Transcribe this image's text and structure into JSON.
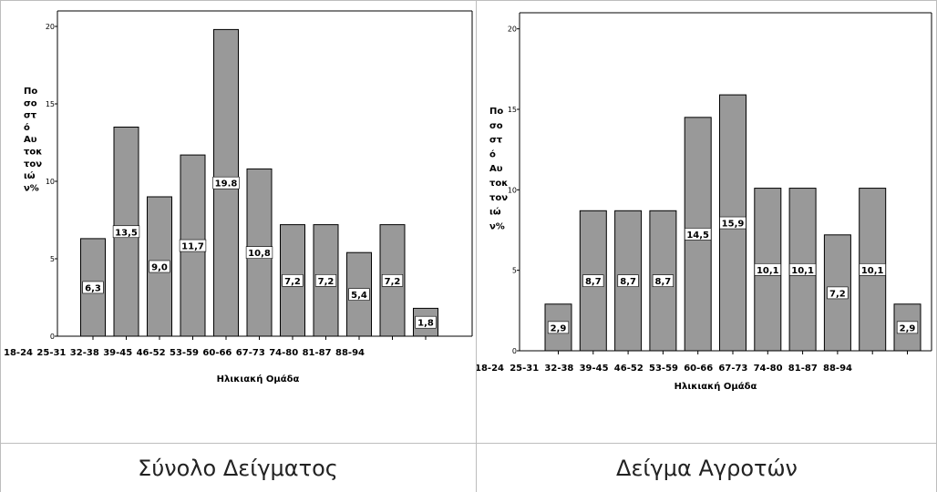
{
  "chart_data": [
    {
      "type": "bar",
      "categories": [
        "18-24",
        "25-31",
        "32-38",
        "39-45",
        "46-52",
        "53-59",
        "60-66",
        "67-73",
        "74-80",
        "81-87",
        "88-94"
      ],
      "values": [
        6.3,
        13.5,
        9.0,
        11.7,
        19.8,
        10.8,
        7.2,
        7.2,
        5.4,
        7.2,
        1.8
      ],
      "value_labels": [
        "6,3",
        "13,5",
        "9,0",
        "11,7",
        "19.8",
        "10,8",
        "7,2",
        "7,2",
        "5,4",
        "7,2",
        "1,8"
      ],
      "xlabel": "Ηλικιακή Ομάδα",
      "ylabel_lines": [
        "Πο",
        "σο",
        "στ",
        "ό",
        "Αυ",
        "τοκ",
        "τον",
        "ιώ",
        "ν%"
      ],
      "yticks": [
        0,
        5,
        10,
        15,
        20
      ],
      "ytick_labels": [
        "0",
        "5",
        "10",
        "15",
        "20"
      ],
      "ylim": [
        0,
        21
      ],
      "bar_color": "#999999",
      "grid": false,
      "caption": "Σύνολο Δείγματος"
    },
    {
      "type": "bar",
      "categories": [
        "18-24",
        "25-31",
        "32-38",
        "39-45",
        "46-52",
        "53-59",
        "60-66",
        "67-73",
        "74-80",
        "81-87",
        "88-94"
      ],
      "values": [
        2.9,
        8.7,
        8.7,
        8.7,
        14.5,
        15.9,
        10.1,
        10.1,
        7.2,
        10.1,
        2.9
      ],
      "value_labels": [
        "2,9",
        "8,7",
        "8,7",
        "8,7",
        "14,5",
        "15,9",
        "10,1",
        "10,1",
        "7,2",
        "10,1",
        "2,9"
      ],
      "xlabel": "Ηλικιακή Ομάδα",
      "ylabel_lines": [
        "Πο",
        "σο",
        "στ",
        "ό",
        "Αυ",
        "τοκ",
        "τον",
        "ιώ",
        "ν%"
      ],
      "yticks": [
        0,
        5,
        10,
        15,
        20
      ],
      "ytick_labels": [
        "0",
        "5",
        "10",
        "15",
        "20"
      ],
      "ylim": [
        0,
        21
      ],
      "bar_color": "#999999",
      "grid": false,
      "caption": "Δείγμα Αγροτών"
    }
  ]
}
